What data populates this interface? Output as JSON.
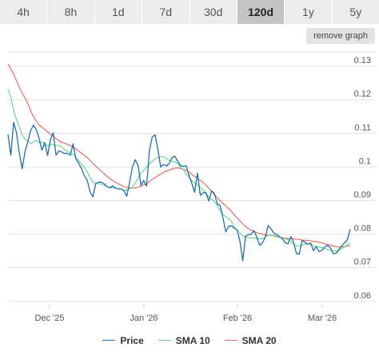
{
  "tabs": [
    {
      "label": "4h",
      "active": false
    },
    {
      "label": "8h",
      "active": false
    },
    {
      "label": "1d",
      "active": false
    },
    {
      "label": "7d",
      "active": false
    },
    {
      "label": "30d",
      "active": false
    },
    {
      "label": "120d",
      "active": true
    },
    {
      "label": "1y",
      "active": false
    },
    {
      "label": "5y",
      "active": false
    }
  ],
  "remove_graph_label": "remove graph",
  "chart_data": {
    "type": "line",
    "x_tick_labels": [
      "Dec '25",
      "Jan '26",
      "Feb '26",
      "Mar '26"
    ],
    "y_tick_labels": [
      "0.06",
      "0.07",
      "0.08",
      "0.09",
      "0.1",
      "0.11",
      "0.12",
      "0.13"
    ],
    "ylim": [
      0.059,
      0.135
    ],
    "grid": true,
    "legend_position": "bottom",
    "series": [
      {
        "name": "Price",
        "color": "#1f6fa8",
        "values": [
          0.1097,
          0.1035,
          0.1133,
          0.1102,
          0.1043,
          0.0995,
          0.1045,
          0.1075,
          0.1108,
          0.1125,
          0.1112,
          0.1085,
          0.105,
          0.1073,
          0.1034,
          0.1081,
          0.1102,
          0.1035,
          0.1048,
          0.1045,
          0.104,
          0.1041,
          0.1035,
          0.1069,
          0.1024,
          0.1011,
          0.0995,
          0.0974,
          0.0961,
          0.0926,
          0.0911,
          0.095,
          0.0955,
          0.0955,
          0.095,
          0.0942,
          0.0938,
          0.0944,
          0.0937,
          0.0935,
          0.0935,
          0.0929,
          0.0913,
          0.0955,
          0.1,
          0.1022,
          0.1005,
          0.0946,
          0.096,
          0.0943,
          0.1048,
          0.109,
          0.1096,
          0.1052,
          0.1,
          0.1008,
          0.1003,
          0.1011,
          0.1028,
          0.1032,
          0.1018,
          0.1004,
          0.1002,
          0.1004,
          0.0975,
          0.0951,
          0.0925,
          0.0982,
          0.0916,
          0.0923,
          0.0924,
          0.0899,
          0.0929,
          0.0921,
          0.089,
          0.0886,
          0.0849,
          0.0807,
          0.0823,
          0.0825,
          0.0818,
          0.0813,
          0.0779,
          0.0721,
          0.0794,
          0.0799,
          0.08,
          0.0811,
          0.0791,
          0.0767,
          0.0775,
          0.0792,
          0.0826,
          0.0816,
          0.0803,
          0.08,
          0.0793,
          0.0787,
          0.0775,
          0.0771,
          0.0793,
          0.0775,
          0.0742,
          0.0741,
          0.0782,
          0.0776,
          0.077,
          0.0774,
          0.0751,
          0.0763,
          0.0748,
          0.0752,
          0.0762,
          0.0767,
          0.0759,
          0.0742,
          0.0743,
          0.0754,
          0.0765,
          0.0775,
          0.0783,
          0.0815
        ]
      },
      {
        "name": "SMA 10",
        "color": "#5fd68a",
        "values": [
          0.1231,
          0.1207,
          0.1169,
          0.114,
          0.112,
          0.1096,
          0.1083,
          0.108,
          0.107,
          0.1075,
          0.108,
          0.1072,
          0.1075,
          0.1066,
          0.1063,
          0.1068,
          0.1066,
          0.1065,
          0.1064,
          0.106,
          0.1052,
          0.1048,
          0.1042,
          0.1038,
          0.103,
          0.1019,
          0.1009,
          0.1,
          0.0985,
          0.0969,
          0.0955,
          0.0951,
          0.0952,
          0.0948,
          0.0946,
          0.0941,
          0.0939,
          0.0939,
          0.0937,
          0.0936,
          0.0935,
          0.0931,
          0.0931,
          0.0935,
          0.094,
          0.0953,
          0.0967,
          0.098,
          0.0991,
          0.1,
          0.1009,
          0.1017,
          0.1024,
          0.1029,
          0.1032,
          0.1031,
          0.1025,
          0.102,
          0.1017,
          0.1015,
          0.1012,
          0.0999,
          0.0992,
          0.0979,
          0.097,
          0.0959,
          0.0953,
          0.0947,
          0.094,
          0.0933,
          0.0921,
          0.0912,
          0.0904,
          0.0896,
          0.0885,
          0.087,
          0.0859,
          0.0852,
          0.0846,
          0.0838,
          0.0821,
          0.0812,
          0.0804,
          0.0795,
          0.0792,
          0.0789,
          0.0789,
          0.0789,
          0.0787,
          0.0787,
          0.0786,
          0.0792,
          0.0797,
          0.0797,
          0.0796,
          0.0795,
          0.0791,
          0.0789,
          0.0786,
          0.0784,
          0.0777,
          0.0771,
          0.0765,
          0.0766,
          0.0767,
          0.077,
          0.0772,
          0.077,
          0.0766,
          0.0764,
          0.0762,
          0.076,
          0.0758,
          0.0755,
          0.0752,
          0.0751,
          0.075,
          0.0752,
          0.0757,
          0.0762,
          0.077,
          0.0775
        ]
      },
      {
        "name": "SMA 20",
        "color": "#e8605a",
        "values": [
          0.1307,
          0.1292,
          0.1277,
          0.1257,
          0.1237,
          0.1221,
          0.1206,
          0.1189,
          0.1168,
          0.115,
          0.1137,
          0.1125,
          0.1119,
          0.1112,
          0.1105,
          0.1098,
          0.1091,
          0.1085,
          0.1078,
          0.1074,
          0.1071,
          0.1068,
          0.1064,
          0.1059,
          0.1054,
          0.1048,
          0.1041,
          0.1035,
          0.1028,
          0.102,
          0.1011,
          0.1003,
          0.0995,
          0.0987,
          0.098,
          0.0972,
          0.0966,
          0.096,
          0.0955,
          0.095,
          0.0946,
          0.0942,
          0.0939,
          0.0938,
          0.0937,
          0.0938,
          0.094,
          0.0943,
          0.0947,
          0.0951,
          0.0957,
          0.0963,
          0.0968,
          0.0974,
          0.0979,
          0.0984,
          0.0988,
          0.0991,
          0.0994,
          0.0997,
          0.0997,
          0.0996,
          0.0993,
          0.099,
          0.0985,
          0.0978,
          0.0972,
          0.0966,
          0.096,
          0.0954,
          0.0946,
          0.0937,
          0.0927,
          0.0918,
          0.0909,
          0.09,
          0.0892,
          0.0885,
          0.0876,
          0.0868,
          0.0858,
          0.0849,
          0.084,
          0.0831,
          0.0823,
          0.0817,
          0.0812,
          0.0808,
          0.0805,
          0.0802,
          0.08,
          0.0799,
          0.0797,
          0.0796,
          0.0795,
          0.0793,
          0.0791,
          0.0789,
          0.0788,
          0.0787,
          0.0787,
          0.0786,
          0.0785,
          0.0784,
          0.0783,
          0.0782,
          0.0781,
          0.078,
          0.0779,
          0.0778,
          0.0776,
          0.0774,
          0.0772,
          0.0769,
          0.0767,
          0.0765,
          0.0763,
          0.0762,
          0.0762,
          0.0763,
          0.0765,
          0.0767
        ]
      }
    ]
  }
}
